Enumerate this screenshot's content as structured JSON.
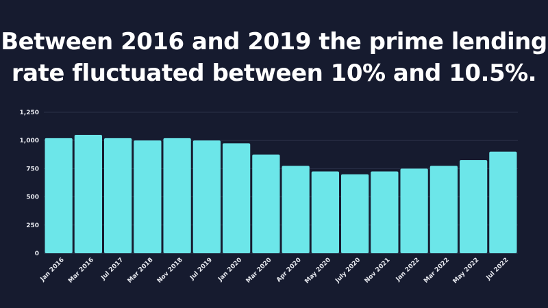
{
  "chart_data": {
    "type": "bar",
    "title": "Between 2016 and 2019 the prime lending rate fluctuated between 10% and 10.5%.",
    "xlabel": "",
    "ylabel": "",
    "categories": [
      "Jan 2016",
      "Mar 2016",
      "Jul 2017",
      "Mar 2018",
      "Nov 2018",
      "Jul 2019",
      "Jan 2020",
      "Mar 2020",
      "Apr 2020",
      "May 2020",
      "July 2020",
      "Nov 2021",
      "Jan 2022",
      "Mar 2022",
      "May 2022",
      "Jul 2022"
    ],
    "values": [
      1020,
      1050,
      1020,
      1000,
      1020,
      1000,
      975,
      875,
      775,
      725,
      700,
      725,
      750,
      775,
      825,
      900
    ],
    "ylim": [
      0,
      1250
    ],
    "yticks": [
      0,
      250,
      500,
      750,
      1000,
      1250
    ],
    "ytick_labels": [
      "0",
      "250",
      "500",
      "750",
      "1,000",
      "1,250"
    ],
    "grid": true,
    "legend": "none",
    "colors": {
      "bar": "#6ce6e9",
      "background": "#161b2f",
      "grid": "#2a3047",
      "text": "#ffffff"
    }
  }
}
